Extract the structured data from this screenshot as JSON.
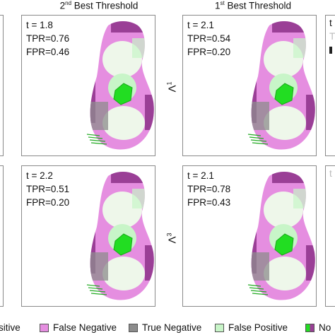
{
  "headers": {
    "second": {
      "prefix": "2",
      "sup": "nd",
      "rest": " Best Threshold"
    },
    "first": {
      "prefix": "1",
      "sup": "st",
      "rest": " Best Threshold"
    }
  },
  "panels": [
    {
      "t": "t = 1.8",
      "tpr": "TPR=0.76",
      "fpr": "FPR=0.46"
    },
    {
      "t": "t = 2.1",
      "tpr": "TPR=0.54",
      "fpr": "FPR=0.20"
    },
    {
      "t": "t = 2.2",
      "tpr": "TPR=0.51",
      "fpr": "FPR=0.20"
    },
    {
      "t": "t = 2.1",
      "tpr": "TPR=0.78",
      "fpr": "FPR=0.43"
    }
  ],
  "row_labels": {
    "row1": {
      "base": "Λ",
      "sup": "1"
    },
    "row2": {
      "base": "Λ",
      "sup": "3"
    }
  },
  "right_edge": {
    "row1_a": "t",
    "row1_b": "T",
    "row2_a": "t"
  },
  "legend": {
    "positive_tail": "sitive",
    "false_negative": "False Negative",
    "true_negative": "True Negative",
    "false_positive": "False Positive",
    "no_tail": "No"
  },
  "colors": {
    "false_negative": "#e58ee0",
    "true_negative": "#8c8c8c",
    "false_positive": "#c8f5c8",
    "true_positive": "#22dd22",
    "magenta_dark": "#9a3f96",
    "light_region": "#eef7ea"
  }
}
